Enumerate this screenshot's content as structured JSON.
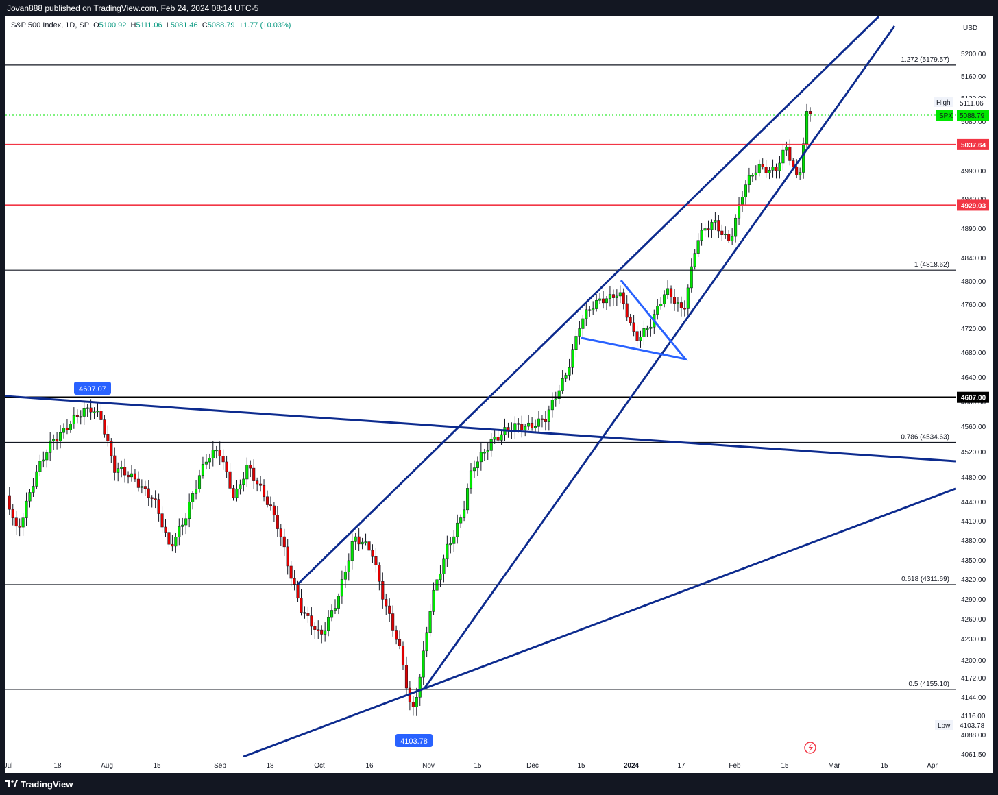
{
  "header": {
    "publisher_text": "Jovan888 published on TradingView.com, Feb 24, 2024 08:14 UTC-5"
  },
  "legend": {
    "symbol": "S&P 500 Index, 1D, SP",
    "open_label": "O",
    "open": "5100.92",
    "high_label": "H",
    "high": "5111.06",
    "low_label": "L",
    "low": "5081.46",
    "close_label": "C",
    "close": "5088.79",
    "change": "+1.77 (+0.03%)"
  },
  "price_axis": {
    "currency": "USD",
    "ticks": [
      "5200.00",
      "5160.00",
      "5120.00",
      "5080.00",
      "4990.00",
      "4940.00",
      "4890.00",
      "4840.00",
      "4800.00",
      "4760.00",
      "4720.00",
      "4680.00",
      "4640.00",
      "4600.00",
      "4560.00",
      "4520.00",
      "4480.00",
      "4440.00",
      "4410.00",
      "4380.00",
      "4350.00",
      "4320.00",
      "4290.00",
      "4260.00",
      "4230.00",
      "4200.00",
      "4172.00",
      "4144.00",
      "4116.00",
      "4088.00",
      "4061.50"
    ],
    "high_label": "High",
    "high_value": "5111.06",
    "spx_label": "SPX",
    "spx_value": "5088.79",
    "low_label": "Low",
    "low_value": "4103.78",
    "level_5037": "5037.64",
    "level_4929": "4929.03",
    "level_4607": "4607.00"
  },
  "time_axis": {
    "labels": [
      "Jul",
      "18",
      "Aug",
      "15",
      "Sep",
      "18",
      "Oct",
      "16",
      "Nov",
      "15",
      "Dec",
      "15",
      "2024",
      "17",
      "Feb",
      "15",
      "Mar",
      "15",
      "Apr"
    ]
  },
  "fib_levels": [
    {
      "label": "1.272 (5179.57)",
      "price": 5179.57
    },
    {
      "label": "1 (4818.62)",
      "price": 4818.62
    },
    {
      "label": "0.786 (4534.63)",
      "price": 4534.63
    },
    {
      "label": "0.618 (4311.69)",
      "price": 4311.69
    },
    {
      "label": "0.5 (4155.10)",
      "price": 4155.1
    }
  ],
  "annotations": {
    "peak_value": "4607.07",
    "low_value": "4103.78"
  },
  "colors": {
    "up": "#00e600",
    "down": "#e00000",
    "line": "#0d2b8e",
    "flag": "#2962ff",
    "red_level": "#f23645",
    "current_price": "#00e600"
  },
  "footer": {
    "brand": "TradingView"
  },
  "chart_data": {
    "type": "candlestick",
    "title": "S&P 500 Index, 1D, SP",
    "ohlc_last": {
      "open": 5100.92,
      "high": 5111.06,
      "low": 5081.46,
      "close": 5088.79
    },
    "horizontal_levels": [
      5037.64,
      4929.03,
      4607.0
    ],
    "ylim": [
      4061.5,
      5231
    ]
  }
}
